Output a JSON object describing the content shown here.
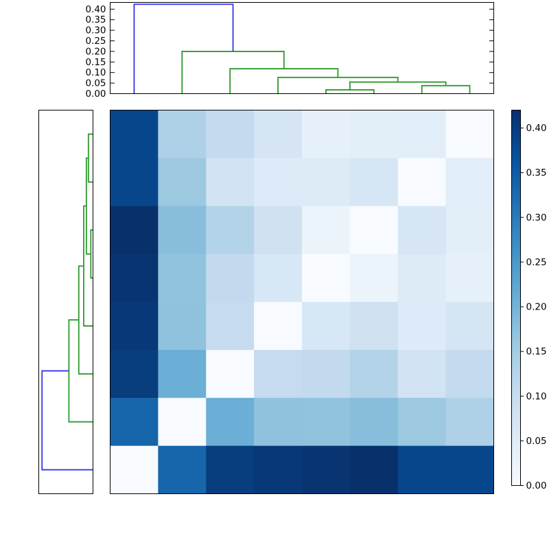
{
  "figure": {
    "title": "",
    "background_color": "#ffffff",
    "frame_color": "#000000",
    "tick_label_color": "#000000",
    "link_color_above_threshold": "#3434ee",
    "link_color_cluster": "#2b9a2b"
  },
  "chart_data": {
    "type": "heatmap",
    "subtype": "clustermap-distance-matrix-with-dendrograms",
    "n_rows": 8,
    "n_cols": 8,
    "vmin": 0.0,
    "vmax": 0.42,
    "colormap": "Blues",
    "colormap_stops": [
      "#f7fbff",
      "#deebf7",
      "#c6dbef",
      "#9ecae1",
      "#6baed6",
      "#4292c6",
      "#2171b5",
      "#08519c",
      "#08306b"
    ],
    "grid": false,
    "heatmap_values_rows_top_to_bottom": [
      [
        0.385,
        0.135,
        0.107,
        0.073,
        0.035,
        0.044,
        0.047,
        0.0
      ],
      [
        0.385,
        0.16,
        0.079,
        0.055,
        0.054,
        0.069,
        0.0,
        0.047
      ],
      [
        0.42,
        0.18,
        0.13,
        0.084,
        0.024,
        0.0,
        0.069,
        0.044
      ],
      [
        0.414,
        0.17,
        0.11,
        0.067,
        0.0,
        0.024,
        0.054,
        0.035
      ],
      [
        0.407,
        0.172,
        0.105,
        0.0,
        0.067,
        0.084,
        0.055,
        0.073
      ],
      [
        0.4,
        0.21,
        0.0,
        0.105,
        0.11,
        0.13,
        0.079,
        0.107
      ],
      [
        0.335,
        0.0,
        0.21,
        0.172,
        0.17,
        0.18,
        0.16,
        0.135
      ],
      [
        0.0,
        0.335,
        0.4,
        0.407,
        0.414,
        0.42,
        0.385,
        0.385
      ]
    ],
    "top_dendrogram": {
      "orientation": "top",
      "ylim": [
        0,
        0.432
      ],
      "axis_tick_values": [
        0.4,
        0.35,
        0.3,
        0.25,
        0.2,
        0.15,
        0.1,
        0.05,
        0.0
      ],
      "axis_tick_labels": [
        "0.40",
        "0.35",
        "0.30",
        "0.25",
        "0.20",
        "0.15",
        "0.10",
        "0.05",
        "0.00"
      ],
      "links": [
        {
          "a": 4.5,
          "ha": 0,
          "b": 5.5,
          "hb": 0,
          "h": 0.018,
          "color": "green"
        },
        {
          "a": 6.5,
          "ha": 0,
          "b": 7.5,
          "hb": 0,
          "h": 0.038,
          "color": "green"
        },
        {
          "a": 5.0,
          "ha": 0.018,
          "b": 7.0,
          "hb": 0.038,
          "h": 0.055,
          "color": "green"
        },
        {
          "a": 3.5,
          "ha": 0,
          "b": 6.0,
          "hb": 0.055,
          "h": 0.077,
          "color": "green"
        },
        {
          "a": 2.5,
          "ha": 0,
          "b": 4.75,
          "hb": 0.077,
          "h": 0.118,
          "color": "green"
        },
        {
          "a": 1.5,
          "ha": 0,
          "b": 3.625,
          "hb": 0.118,
          "h": 0.2,
          "color": "green"
        },
        {
          "a": 0.5,
          "ha": 0,
          "b": 2.5625,
          "hb": 0.2,
          "h": 0.423,
          "color": "blue"
        }
      ]
    },
    "left_dendrogram": {
      "orientation": "left",
      "xlim": [
        0,
        0.45
      ],
      "links": [
        {
          "a": 0.5,
          "ha": 0,
          "b": 1.5,
          "hb": 0,
          "h": 0.038,
          "color": "green"
        },
        {
          "a": 2.5,
          "ha": 0,
          "b": 3.5,
          "hb": 0,
          "h": 0.018,
          "color": "green"
        },
        {
          "a": 1.0,
          "ha": 0.038,
          "b": 3.0,
          "hb": 0.018,
          "h": 0.055,
          "color": "green"
        },
        {
          "a": 2.0,
          "ha": 0.055,
          "b": 4.5,
          "hb": 0,
          "h": 0.077,
          "color": "green"
        },
        {
          "a": 3.25,
          "ha": 0.077,
          "b": 5.5,
          "hb": 0,
          "h": 0.118,
          "color": "green"
        },
        {
          "a": 4.375,
          "ha": 0.118,
          "b": 6.5,
          "hb": 0,
          "h": 0.2,
          "color": "green"
        },
        {
          "a": 5.4375,
          "ha": 0.2,
          "b": 7.5,
          "hb": 0,
          "h": 0.423,
          "color": "blue"
        }
      ]
    },
    "colorbar": {
      "range": [
        0.0,
        0.42
      ],
      "tick_values": [
        0.4,
        0.35,
        0.3,
        0.25,
        0.2,
        0.15,
        0.1,
        0.05,
        0.0
      ],
      "tick_labels": [
        "0.40",
        "0.35",
        "0.30",
        "0.25",
        "0.20",
        "0.15",
        "0.10",
        "0.05",
        "0.00"
      ]
    }
  }
}
